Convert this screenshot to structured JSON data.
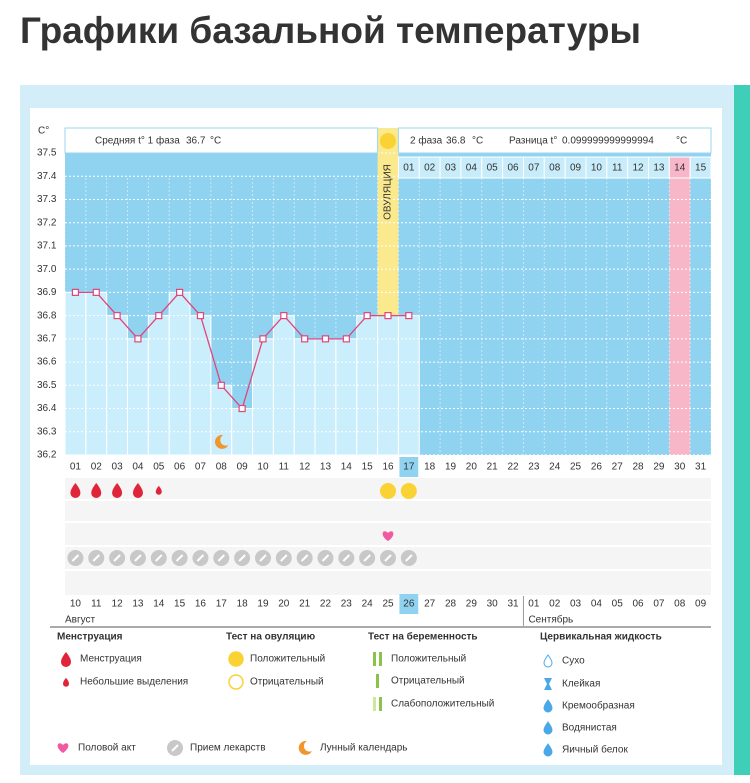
{
  "header": {
    "title": "Графики базальной температуры"
  },
  "chart_data": {
    "type": "line",
    "y_axis_label": "C°",
    "ylim": [
      36.2,
      37.5
    ],
    "yticks": [
      37.5,
      37.4,
      37.3,
      37.2,
      37.1,
      {
        "value": 37,
        "label": "37.0"
      },
      36.9,
      36.8,
      36.7,
      36.6,
      36.5,
      36.4,
      36.3,
      36.2
    ],
    "categories": [
      "01",
      "02",
      "03",
      "04",
      "05",
      "06",
      "07",
      "08",
      "09",
      "10",
      "11",
      "12",
      "13",
      "14",
      "15",
      "16",
      "17",
      "18",
      "19",
      "20",
      "21",
      "22",
      "23",
      "24",
      "25",
      "26",
      "27",
      "28",
      "29",
      "30",
      "31"
    ],
    "values": [
      36.9,
      36.9,
      36.8,
      36.7,
      36.8,
      36.9,
      36.8,
      36.5,
      36.4,
      36.7,
      36.8,
      36.7,
      36.7,
      36.7,
      36.8,
      36.8,
      36.8,
      null,
      null,
      null,
      null,
      null,
      null,
      null,
      null,
      null,
      null,
      null,
      null,
      null,
      null
    ],
    "color": "#e0457b",
    "current_day": 17,
    "phase1_label": "Средняя t° 1 фаза",
    "phase1_avg": 36.7,
    "phase2_label": "2 фаза",
    "phase2_avg": 36.8,
    "diff_label": "Разница t°",
    "diff": 0.099999999999994,
    "unit": "°C",
    "ovulation_label": "ОВУЛЯЦИЯ",
    "ovulation_day": 16,
    "highlight_day": 30,
    "phase2_days": [
      "01",
      "02",
      "03",
      "04",
      "05",
      "06",
      "07",
      "08",
      "09",
      "10",
      "11",
      "12",
      "13",
      "14",
      "15"
    ],
    "menstruation_days": [
      1,
      2,
      3,
      4
    ],
    "spotting_days": [
      5
    ],
    "ovulation_test_positive_days": [
      16,
      17
    ],
    "intercourse_days": [
      16
    ],
    "medication_days": [
      1,
      2,
      3,
      4,
      5,
      6,
      7,
      8,
      9,
      10,
      11,
      12,
      13,
      14,
      15,
      16,
      17
    ],
    "moon_days": [
      8
    ],
    "dates": [
      {
        "label": "10"
      },
      {
        "label": "11"
      },
      {
        "label": "12"
      },
      {
        "label": "13"
      },
      {
        "label": "14",
        "color": "#e0245e"
      },
      {
        "label": "15",
        "color": "#e0245e"
      },
      {
        "label": "16"
      },
      {
        "label": "17"
      },
      {
        "label": "18"
      },
      {
        "label": "19"
      },
      {
        "label": "20"
      },
      {
        "label": "21",
        "color": "#e0245e"
      },
      {
        "label": "22",
        "color": "#e0245e"
      },
      {
        "label": "23"
      },
      {
        "label": "24"
      },
      {
        "label": "25"
      },
      {
        "label": "26"
      },
      {
        "label": "27"
      },
      {
        "label": "28",
        "color": "#e0245e"
      },
      {
        "label": "29",
        "color": "#e0245e"
      },
      {
        "label": "30"
      },
      {
        "label": "31"
      },
      {
        "label": "01"
      },
      {
        "label": "02"
      },
      {
        "label": "03"
      },
      {
        "label": "04",
        "color": "#e0245e"
      },
      {
        "label": "05",
        "color": "#e0245e"
      },
      {
        "label": "06"
      },
      {
        "label": "07"
      },
      {
        "label": "08"
      },
      {
        "label": "09"
      }
    ],
    "months": [
      "Август",
      "Сентябрь"
    ]
  },
  "legend": {
    "groups": [
      {
        "title": "Менструация",
        "items": [
          "Менструация",
          "Небольшие выделения"
        ]
      },
      {
        "title": "Тест на овуляцию",
        "items": [
          "Положительный",
          "Отрицательный"
        ]
      },
      {
        "title": "Тест на беременность",
        "items": [
          "Положительный",
          "Отрицательный",
          "Слабоположительный"
        ]
      },
      {
        "title": "Цервикальная жидкость",
        "items": [
          "Сухо",
          "Клейкая",
          "Кремообразная",
          "Водянистая",
          "Яичный белок"
        ]
      }
    ],
    "other": [
      "Половой акт",
      "Прием лекарств",
      "Лунный календарь"
    ]
  }
}
